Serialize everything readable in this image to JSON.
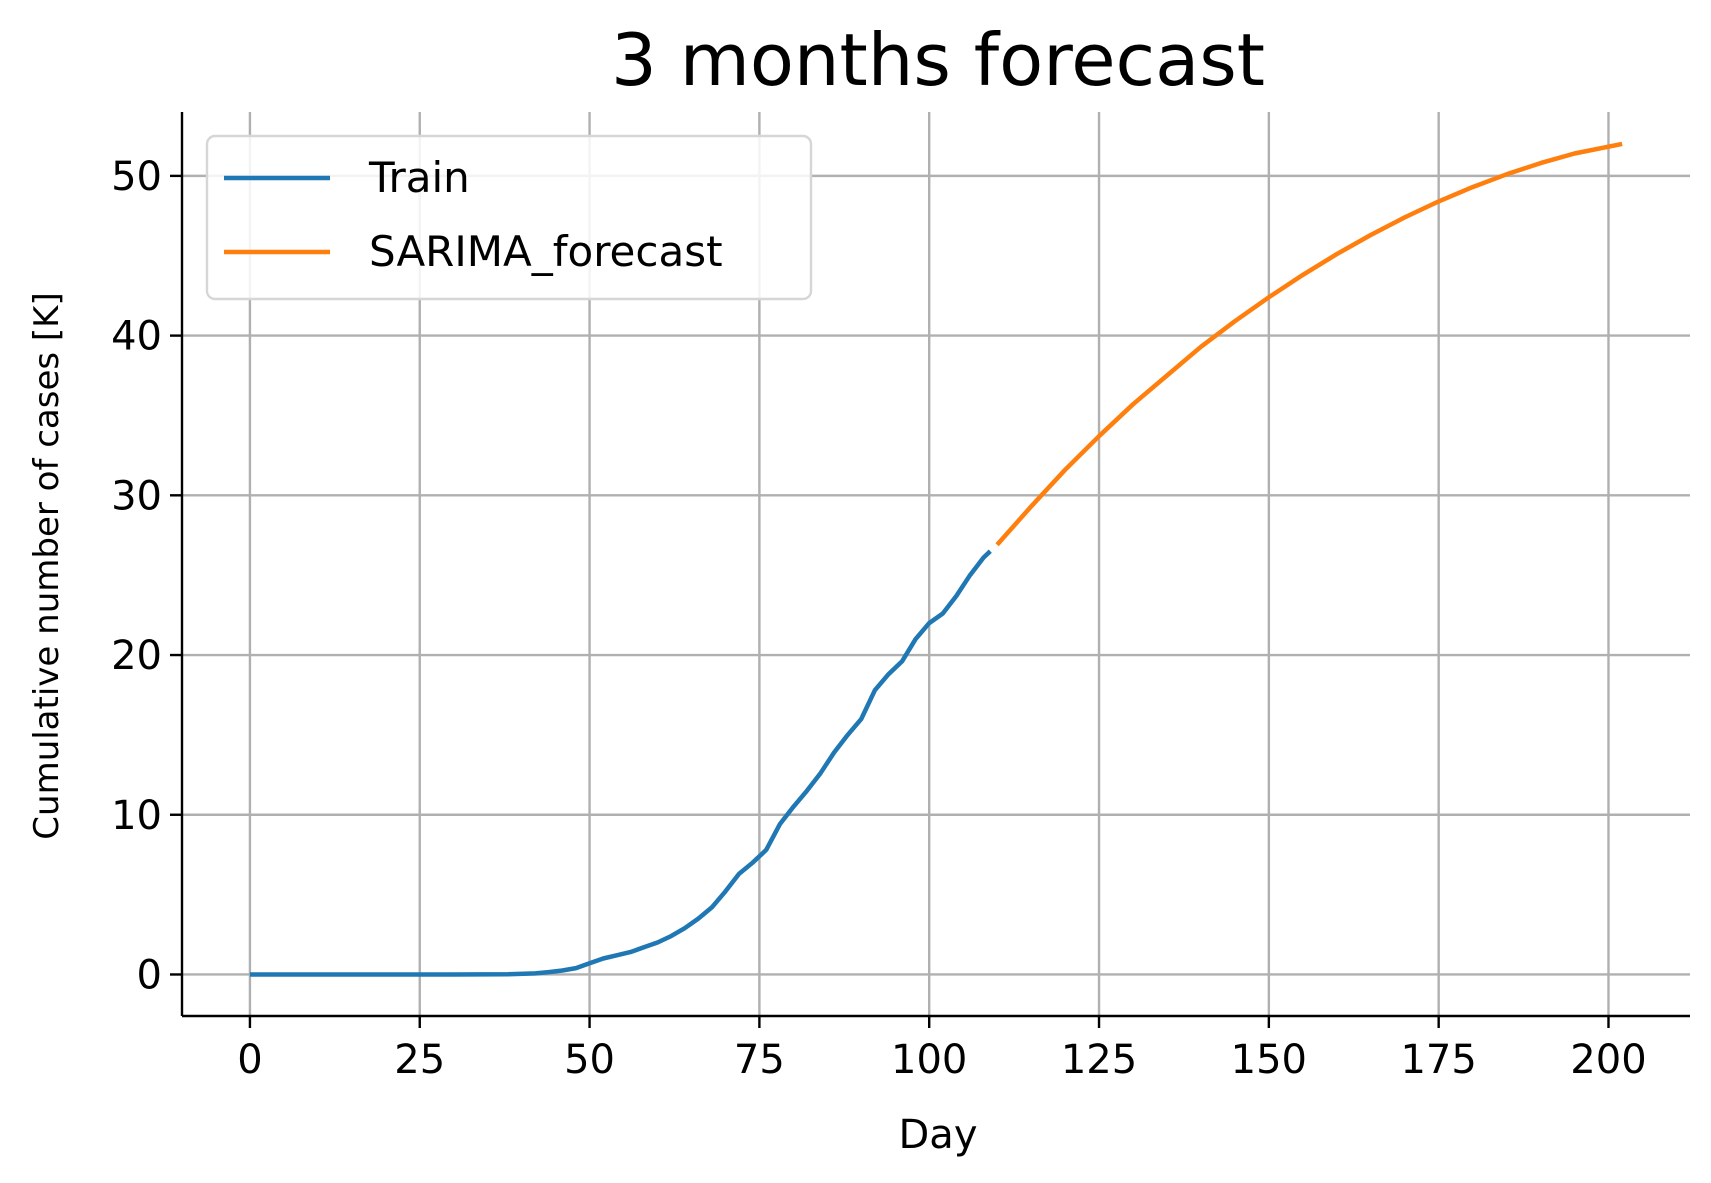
{
  "chart_data": {
    "type": "line",
    "title": "3 months forecast",
    "xlabel": "Day",
    "ylabel": "Cumulative number of cases [K]",
    "xlim": [
      -10,
      212
    ],
    "ylim": [
      -2.6,
      54
    ],
    "xticks": [
      0,
      25,
      50,
      75,
      100,
      125,
      150,
      175,
      200
    ],
    "yticks": [
      0,
      10,
      20,
      30,
      40,
      50
    ],
    "grid": true,
    "legend": "top-left",
    "series": [
      {
        "name": "Train",
        "color": "#1f77b4",
        "x": [
          0,
          10,
          20,
          30,
          38,
          42,
          44,
          46,
          48,
          50,
          52,
          54,
          56,
          58,
          60,
          62,
          64,
          66,
          68,
          70,
          72,
          74,
          76,
          78,
          80,
          82,
          84,
          86,
          88,
          90,
          92,
          94,
          96,
          98,
          100,
          102,
          104,
          106,
          108,
          109
        ],
        "y": [
          0,
          0,
          0,
          0,
          0.02,
          0.07,
          0.15,
          0.25,
          0.4,
          0.7,
          1.0,
          1.2,
          1.4,
          1.7,
          2.0,
          2.4,
          2.9,
          3.5,
          4.2,
          5.2,
          6.3,
          7.0,
          7.8,
          9.4,
          10.5,
          11.5,
          12.6,
          13.9,
          15.0,
          16.0,
          17.8,
          18.8,
          19.6,
          21.0,
          22.0,
          22.6,
          23.7,
          25.0,
          26.1,
          26.5
        ]
      },
      {
        "name": "SARIMA_forecast",
        "color": "#ff7f0e",
        "x": [
          110,
          115,
          120,
          125,
          130,
          135,
          140,
          145,
          150,
          155,
          160,
          165,
          170,
          175,
          180,
          185,
          190,
          195,
          202
        ],
        "y": [
          26.9,
          29.3,
          31.6,
          33.7,
          35.7,
          37.5,
          39.3,
          40.9,
          42.4,
          43.8,
          45.1,
          46.3,
          47.4,
          48.4,
          49.3,
          50.1,
          50.8,
          51.4,
          52.0
        ]
      }
    ]
  }
}
